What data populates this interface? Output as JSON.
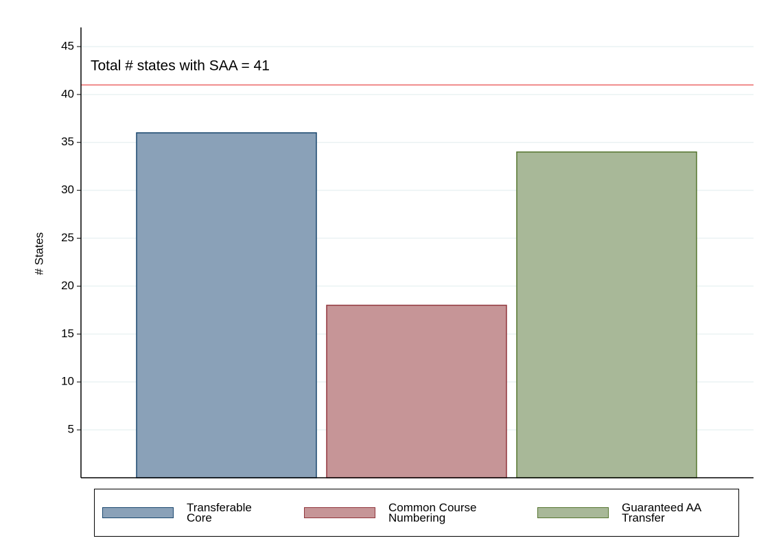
{
  "chart_data": {
    "type": "bar",
    "y_label": "# States",
    "categories": [
      null
    ],
    "series": [
      {
        "name": "Transferable\nCore",
        "color": "#8aa1b8",
        "edge": "#1a476f",
        "values": [
          36
        ]
      },
      {
        "name": "Common Course\nNumbering",
        "color": "#c69597",
        "edge": "#90353b",
        "values": [
          18
        ]
      },
      {
        "name": "Guaranteed AA\nTransfer",
        "color": "#a8b898",
        "edge": "#55752f",
        "values": [
          34
        ]
      }
    ],
    "reference_line": {
      "value": 41,
      "label": "Total # states with SAA = 41",
      "color": "#f08a8a"
    },
    "ylim": [
      0,
      47
    ],
    "yticks": [
      5,
      10,
      15,
      20,
      25,
      30,
      35,
      40,
      45
    ],
    "grid": true,
    "legend": "bottom"
  }
}
